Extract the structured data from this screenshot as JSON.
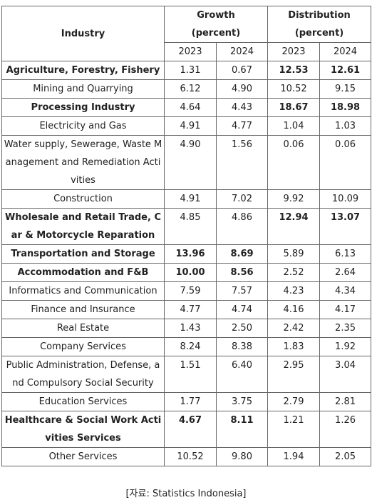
{
  "table": {
    "header": {
      "industry": "Industry",
      "growth": [
        "Growth",
        "(percent)"
      ],
      "distribution": [
        "Distribution",
        "(percent)"
      ],
      "years": [
        "2023",
        "2024",
        "2023",
        "2024"
      ]
    },
    "rows": [
      {
        "industry": "Agriculture, Forestry, Fishery",
        "growth": [
          "1.31",
          "0.67"
        ],
        "distribution": [
          "12.53",
          "12.61"
        ],
        "bold": [
          "industry",
          "distribution"
        ]
      },
      {
        "industry": "Mining and Quarrying",
        "growth": [
          "6.12",
          "4.90"
        ],
        "distribution": [
          "10.52",
          "9.15"
        ],
        "bold": []
      },
      {
        "industry": "Processing Industry",
        "growth": [
          "4.64",
          "4.43"
        ],
        "distribution": [
          "18.67",
          "18.98"
        ],
        "bold": [
          "industry",
          "distribution"
        ]
      },
      {
        "industry": "Electricity and Gas",
        "growth": [
          "4.91",
          "4.77"
        ],
        "distribution": [
          "1.04",
          "1.03"
        ],
        "bold": []
      },
      {
        "industry": "Water supply, Sewerage, Waste Management and Remediation Activities",
        "growth": [
          "4.90",
          "1.56"
        ],
        "distribution": [
          "0.06",
          "0.06"
        ],
        "bold": []
      },
      {
        "industry": "Construction",
        "growth": [
          "4.91",
          "7.02"
        ],
        "distribution": [
          "9.92",
          "10.09"
        ],
        "bold": []
      },
      {
        "industry": "Wholesale and Retail Trade, Car & Motorcycle Reparation",
        "growth": [
          "4.85",
          "4.86"
        ],
        "distribution": [
          "12.94",
          "13.07"
        ],
        "bold": [
          "industry",
          "distribution"
        ]
      },
      {
        "industry": "Transportation and Storage",
        "growth": [
          "13.96",
          "8.69"
        ],
        "distribution": [
          "5.89",
          "6.13"
        ],
        "bold": [
          "industry",
          "growth"
        ]
      },
      {
        "industry": "Accommodation and F&B",
        "growth": [
          "10.00",
          "8.56"
        ],
        "distribution": [
          "2.52",
          "2.64"
        ],
        "bold": [
          "industry",
          "growth"
        ]
      },
      {
        "industry": "Informatics and Communication",
        "growth": [
          "7.59",
          "7.57"
        ],
        "distribution": [
          "4.23",
          "4.34"
        ],
        "bold": []
      },
      {
        "industry": "Finance and Insurance",
        "growth": [
          "4.77",
          "4.74"
        ],
        "distribution": [
          "4.16",
          "4.17"
        ],
        "bold": []
      },
      {
        "industry": "Real Estate",
        "growth": [
          "1.43",
          "2.50"
        ],
        "distribution": [
          "2.42",
          "2.35"
        ],
        "bold": []
      },
      {
        "industry": "Company Services",
        "growth": [
          "8.24",
          "8.38"
        ],
        "distribution": [
          "1.83",
          "1.92"
        ],
        "bold": []
      },
      {
        "industry": "Public Administration, Defense, and Compulsory Social Security",
        "growth": [
          "1.51",
          "6.40"
        ],
        "distribution": [
          "2.95",
          "3.04"
        ],
        "bold": []
      },
      {
        "industry": "Education Services",
        "growth": [
          "1.77",
          "3.75"
        ],
        "distribution": [
          "2.79",
          "2.81"
        ],
        "bold": []
      },
      {
        "industry": "Healthcare & Social Work Activities Services",
        "growth": [
          "4.67",
          "8.11"
        ],
        "distribution": [
          "1.21",
          "1.26"
        ],
        "bold": [
          "industry",
          "growth"
        ]
      },
      {
        "industry": "Other Services",
        "growth": [
          "10.52",
          "9.80"
        ],
        "distribution": [
          "1.94",
          "2.05"
        ],
        "bold": []
      }
    ]
  },
  "source": "[자료: Statistics Indonesia]"
}
